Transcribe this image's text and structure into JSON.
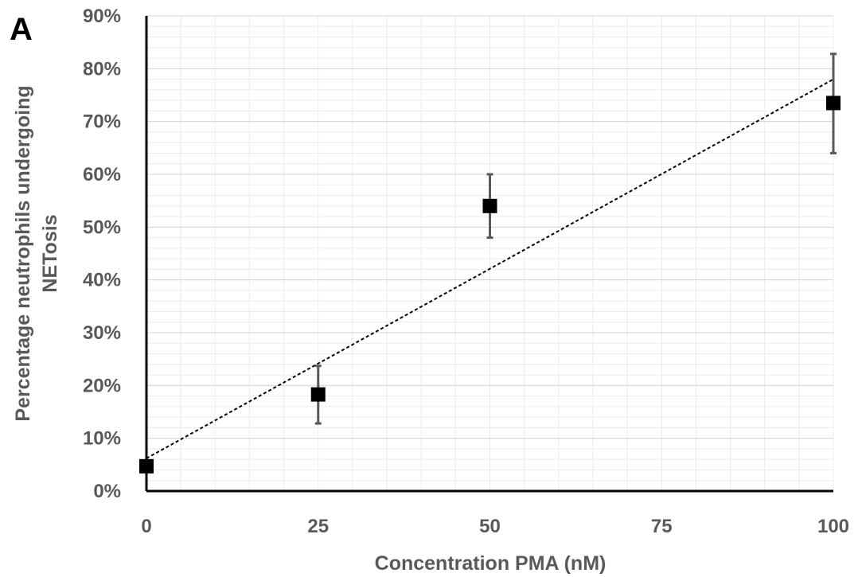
{
  "panel_label": "A",
  "chart_data": {
    "type": "scatter",
    "title": "",
    "xlabel": "Concentration PMA (nM)",
    "ylabel_lines": [
      "Percentage neutrophils undergoing",
      "NETosis"
    ],
    "xlim": [
      0,
      100
    ],
    "ylim": [
      0,
      0.9
    ],
    "x_ticks": [
      0,
      25,
      50,
      75,
      100
    ],
    "x_tick_labels": [
      "0",
      "25",
      "50",
      "75",
      "100"
    ],
    "y_ticks": [
      0,
      0.1,
      0.2,
      0.3,
      0.4,
      0.5,
      0.6,
      0.7,
      0.8,
      0.9
    ],
    "y_tick_labels": [
      "0%",
      "10%",
      "20%",
      "30%",
      "40%",
      "50%",
      "60%",
      "70%",
      "80%",
      "90%"
    ],
    "grid": true,
    "legend": "none",
    "series": [
      {
        "marker": "square",
        "color": "#000000",
        "x": [
          0,
          25,
          50,
          100
        ],
        "y": [
          0.047,
          0.183,
          0.54,
          0.735
        ],
        "error_low": [
          0.047,
          0.128,
          0.48,
          0.64
        ],
        "error_high": [
          0.047,
          0.237,
          0.6,
          0.828
        ]
      }
    ],
    "trendline": {
      "type": "linear",
      "style": "dotted",
      "color": "#000000",
      "x": [
        0,
        100
      ],
      "y": [
        0.062,
        0.78
      ]
    }
  }
}
